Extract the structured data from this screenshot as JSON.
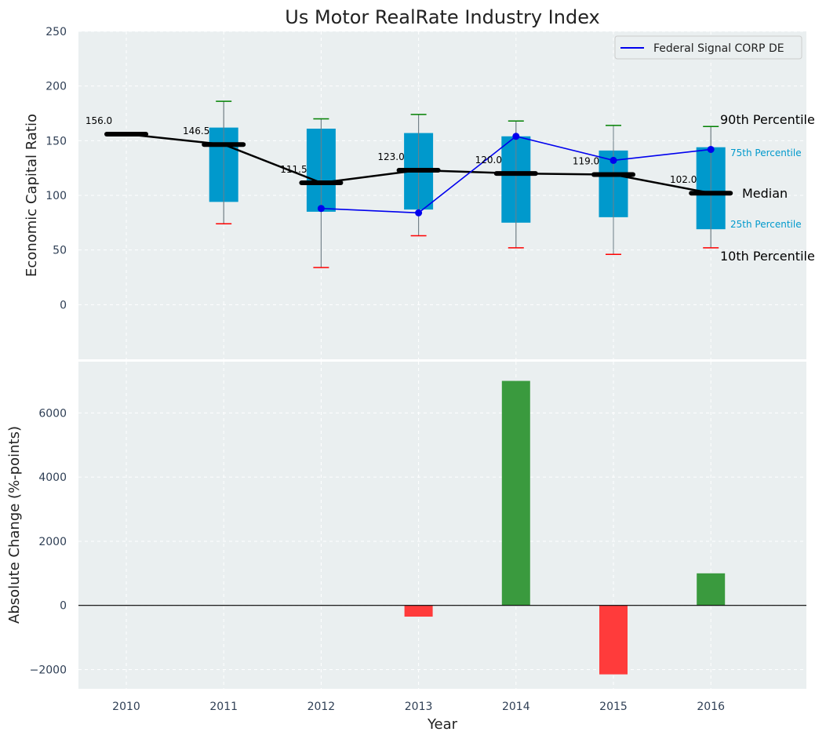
{
  "title": "Us Motor RealRate Industry Index",
  "colors": {
    "panel_bg": "#eaeff0",
    "box": "#0099cc",
    "median": "#000000",
    "whisker_top": "#008000",
    "whisker_bottom": "#ff0000",
    "company": "#0000ee",
    "positive": "#3a9a3e",
    "negative": "#ff3b3b"
  },
  "chart_data": [
    {
      "type": "box",
      "ylabel": "Economic Capital Ratio",
      "ylim": [
        -50,
        250
      ],
      "yticks": [
        0,
        50,
        100,
        150,
        200,
        250
      ],
      "grid": true,
      "legend": {
        "placement": "top-right",
        "entries": [
          "Federal Signal CORP DE"
        ]
      },
      "categories": [
        "2010",
        "2011",
        "2012",
        "2013",
        "2014",
        "2015",
        "2016"
      ],
      "p10": [
        null,
        74,
        34,
        63,
        52,
        46,
        52
      ],
      "p25": [
        null,
        94,
        85,
        87,
        75,
        80,
        69
      ],
      "median": [
        156.0,
        146.5,
        111.5,
        123.0,
        120.0,
        119.0,
        102.0
      ],
      "median_labels": [
        "156.0",
        "146.5",
        "111.5",
        "123.0",
        "120.0",
        "119.0",
        "102.0"
      ],
      "p75": [
        null,
        162,
        161,
        157,
        154,
        141,
        144
      ],
      "p90": [
        null,
        186,
        170,
        174,
        168,
        164,
        163
      ],
      "series": [
        {
          "name": "Federal Signal CORP DE",
          "values": [
            null,
            null,
            88,
            84,
            154,
            132,
            142
          ]
        }
      ],
      "annotations": {
        "p90": "90th Percentile",
        "p75": "75th Percentile",
        "median": "Median",
        "p25": "25th Percentile",
        "p10": "10th Percentile"
      }
    },
    {
      "type": "bar",
      "xlabel": "Year",
      "ylabel": "Absolute Change (%-points)",
      "ylim": [
        -2600,
        7600
      ],
      "yticks": [
        -2000,
        0,
        2000,
        4000,
        6000
      ],
      "ytick_labels": [
        "−2000",
        "0",
        "2000",
        "4000",
        "6000"
      ],
      "grid": true,
      "categories": [
        "2010",
        "2011",
        "2012",
        "2013",
        "2014",
        "2015",
        "2016"
      ],
      "values": [
        null,
        null,
        null,
        -350,
        7000,
        -2150,
        1000
      ]
    }
  ]
}
